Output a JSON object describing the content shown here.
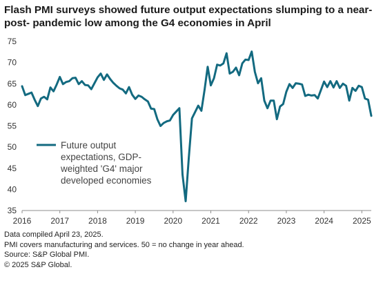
{
  "title_lines": [
    "Flash PMI surveys showed future output expectations slumping to a near-",
    "post- pandemic low among the G4 economies in April"
  ],
  "footnotes": [
    "Data compiled April 23, 2025.",
    "PMI covers manufacturing and services. 50 = no change in year ahead.",
    "Source: S&P Global PMI.",
    "© 2025 S&P Global."
  ],
  "colors": {
    "series": "#136a80",
    "axis": "#8c8c8c"
  },
  "chart_data": {
    "type": "line",
    "title": "",
    "xlabel": "",
    "ylabel": "",
    "ylim": [
      35,
      75
    ],
    "yticks": [
      35,
      40,
      45,
      50,
      55,
      60,
      65,
      70,
      75
    ],
    "xlim": [
      "2016-01",
      "2025-04"
    ],
    "xtick_labels": [
      "2016",
      "2017",
      "2018",
      "2019",
      "2020",
      "2021",
      "2022",
      "2023",
      "2024",
      "2025"
    ],
    "grid": false,
    "legend": {
      "placement": "lower-left",
      "lines": [
        "Future output",
        "expectations, GDP-",
        "weighted 'G4' major",
        "developed economies"
      ]
    },
    "series": [
      {
        "name": "Future output expectations, GDP-weighted 'G4' major developed economies",
        "x": [
          "2016-01",
          "2016-02",
          "2016-03",
          "2016-04",
          "2016-05",
          "2016-06",
          "2016-07",
          "2016-08",
          "2016-09",
          "2016-10",
          "2016-11",
          "2016-12",
          "2017-01",
          "2017-02",
          "2017-03",
          "2017-04",
          "2017-05",
          "2017-06",
          "2017-07",
          "2017-08",
          "2017-09",
          "2017-10",
          "2017-11",
          "2017-12",
          "2018-01",
          "2018-02",
          "2018-03",
          "2018-04",
          "2018-05",
          "2018-06",
          "2018-07",
          "2018-08",
          "2018-09",
          "2018-10",
          "2018-11",
          "2018-12",
          "2019-01",
          "2019-02",
          "2019-03",
          "2019-04",
          "2019-05",
          "2019-06",
          "2019-07",
          "2019-08",
          "2019-09",
          "2019-10",
          "2019-11",
          "2019-12",
          "2020-01",
          "2020-02",
          "2020-03",
          "2020-04",
          "2020-05",
          "2020-06",
          "2020-07",
          "2020-08",
          "2020-09",
          "2020-10",
          "2020-11",
          "2020-12",
          "2021-01",
          "2021-02",
          "2021-03",
          "2021-04",
          "2021-05",
          "2021-06",
          "2021-07",
          "2021-08",
          "2021-09",
          "2021-10",
          "2021-11",
          "2021-12",
          "2022-01",
          "2022-02",
          "2022-03",
          "2022-04",
          "2022-05",
          "2022-06",
          "2022-07",
          "2022-08",
          "2022-09",
          "2022-10",
          "2022-11",
          "2022-12",
          "2023-01",
          "2023-02",
          "2023-03",
          "2023-04",
          "2023-05",
          "2023-06",
          "2023-07",
          "2023-08",
          "2023-09",
          "2023-10",
          "2023-11",
          "2023-12",
          "2024-01",
          "2024-02",
          "2024-03",
          "2024-04",
          "2024-05",
          "2024-06",
          "2024-07",
          "2024-08",
          "2024-09",
          "2024-10",
          "2024-11",
          "2024-12",
          "2025-01",
          "2025-02",
          "2025-03",
          "2025-04"
        ],
        "values": [
          64.4,
          62.3,
          62.6,
          62.9,
          61.2,
          59.7,
          61.5,
          61.9,
          61.3,
          64.1,
          63.2,
          64.8,
          66.6,
          64.9,
          65.4,
          65.6,
          66.3,
          66.4,
          64.9,
          65.6,
          64.7,
          64.6,
          63.7,
          65.1,
          66.5,
          67.4,
          65.9,
          67.2,
          66.1,
          65.2,
          64.5,
          63.9,
          63.6,
          62.7,
          64.2,
          62.4,
          61.4,
          62.2,
          61.9,
          61.3,
          60.8,
          59.1,
          59.0,
          56.6,
          55.0,
          55.7,
          56.1,
          56.3,
          57.6,
          58.4,
          59.2,
          43.5,
          37.2,
          47.5,
          56.8,
          58.3,
          59.8,
          58.6,
          63.5,
          69.0,
          64.6,
          66.3,
          69.5,
          69.3,
          69.8,
          72.2,
          67.4,
          67.8,
          68.8,
          67.0,
          69.8,
          70.7,
          70.6,
          72.6,
          67.8,
          65.1,
          66.3,
          61.0,
          59.2,
          61.0,
          61.0,
          56.6,
          59.6,
          60.2,
          63.1,
          64.9,
          64.0,
          65.1,
          65.0,
          64.8,
          62.1,
          62.4,
          62.2,
          62.3,
          61.5,
          63.5,
          65.5,
          64.2,
          65.6,
          64.1,
          65.6,
          64.0,
          65.0,
          64.5,
          61.0,
          64.0,
          63.3,
          64.5,
          64.2,
          61.5,
          61.2,
          57.4
        ]
      }
    ]
  }
}
